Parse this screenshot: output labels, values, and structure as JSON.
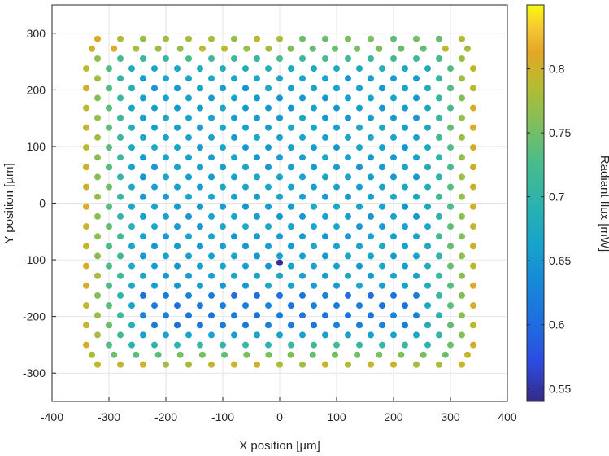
{
  "chart_data": {
    "type": "scatter",
    "title": "",
    "xlabel": "X position [µm]",
    "ylabel": "Y position [µm]",
    "xlim": [
      -400,
      400
    ],
    "ylim": [
      -350,
      350
    ],
    "x_ticks": [
      -400,
      -300,
      -200,
      -100,
      0,
      100,
      200,
      300,
      400
    ],
    "y_ticks": [
      -300,
      -200,
      -100,
      0,
      100,
      200,
      300
    ],
    "x_tick_labels": [
      "-400",
      "-300",
      "-200",
      "-100",
      "0",
      "100",
      "200",
      "300",
      "400"
    ],
    "y_tick_labels": [
      "-300",
      "-200",
      "-100",
      "0",
      "100",
      "200",
      "300"
    ],
    "grid": true,
    "colorbar": {
      "label": "Radiant flux [mW]",
      "range": [
        0.54,
        0.85
      ],
      "ticks": [
        0.55,
        0.6,
        0.65,
        0.7,
        0.75,
        0.8
      ],
      "tick_labels": [
        "0.55",
        "0.6",
        "0.65",
        "0.7",
        "0.75",
        "0.8"
      ],
      "colormap": "parula"
    },
    "lattice": {
      "description": "hexagonal array of emitters",
      "row_spacing_y": 17.5,
      "col_spacing_x": 40,
      "even_row_x_start": -320,
      "even_row_x_end": 320,
      "odd_row_x_start": -340,
      "odd_row_x_end": 340,
      "y_top": 290,
      "y_bottom": -285,
      "top_row_x_range": [
        -320,
        320
      ],
      "bottom_row_x_range": [
        -320,
        320
      ],
      "flux_center": 0.66,
      "flux_edge": 0.8,
      "flux_lower_band": 0.615,
      "outlier": {
        "x": 0,
        "y": -105,
        "flux": 0.545
      }
    },
    "points": []
  }
}
